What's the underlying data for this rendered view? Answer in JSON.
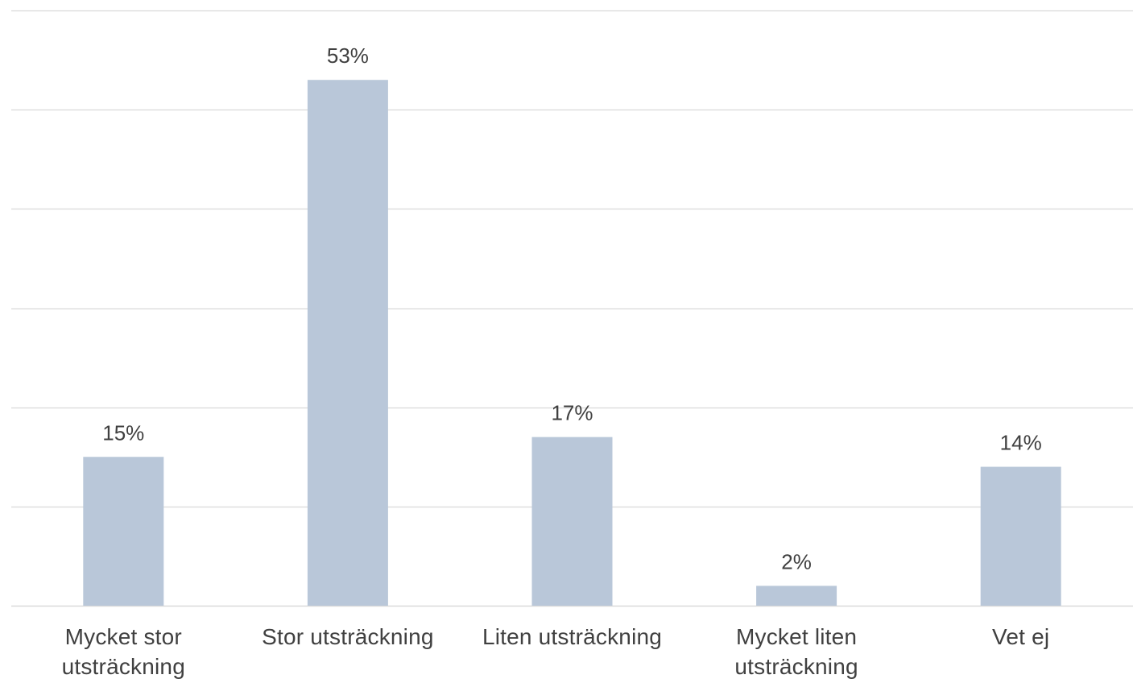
{
  "chart_data": {
    "type": "bar",
    "categories": [
      "Mycket stor utsträckning",
      "Stor utsträckning",
      "Liten utsträckning",
      "Mycket liten utsträckning",
      "Vet ej"
    ],
    "values": [
      15,
      53,
      17,
      2,
      14
    ],
    "data_labels": [
      "15%",
      "53%",
      "17%",
      "2%",
      "14%"
    ],
    "unit": "%",
    "ylim": [
      0,
      60
    ],
    "y_gridline_step": 10,
    "grid": true,
    "legend": false,
    "bar_color": "#b9c7d9",
    "grid_color": "#d9d9d9",
    "text_color": "#404040"
  }
}
